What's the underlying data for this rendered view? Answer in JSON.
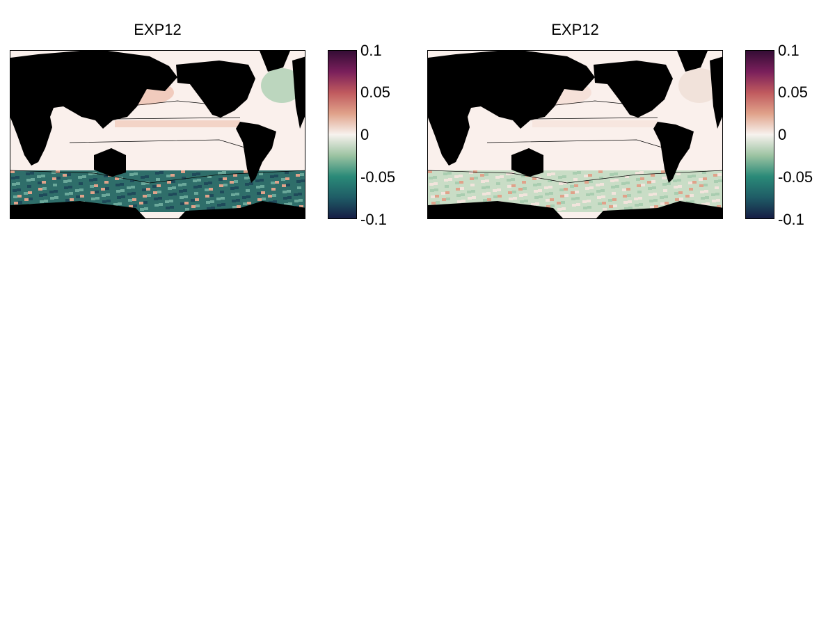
{
  "panels": [
    {
      "title": "EXP12",
      "southern_ocean_color": "#2f6e6a",
      "southern_ocean_intensity": "strong negative"
    },
    {
      "title": "EXP12",
      "southern_ocean_color": "#c9ddc6",
      "southern_ocean_intensity": "weak negative"
    }
  ],
  "colorbar": {
    "colormap": "curl",
    "ticks": [
      "0.1",
      "0.05",
      "0",
      "-0.05",
      "-0.1"
    ],
    "range": [
      -0.1,
      0.1
    ],
    "colors": [
      "#151d44",
      "#1f5c66",
      "#2a8a78",
      "#9cc3a2",
      "#f7f2ee",
      "#e0a28a",
      "#c05a5e",
      "#7a1f5b",
      "#340d35"
    ]
  },
  "colors": {
    "land": "#000000",
    "ocean_neutral": "#faf0ec",
    "positive_tint": "#efc7b8"
  }
}
